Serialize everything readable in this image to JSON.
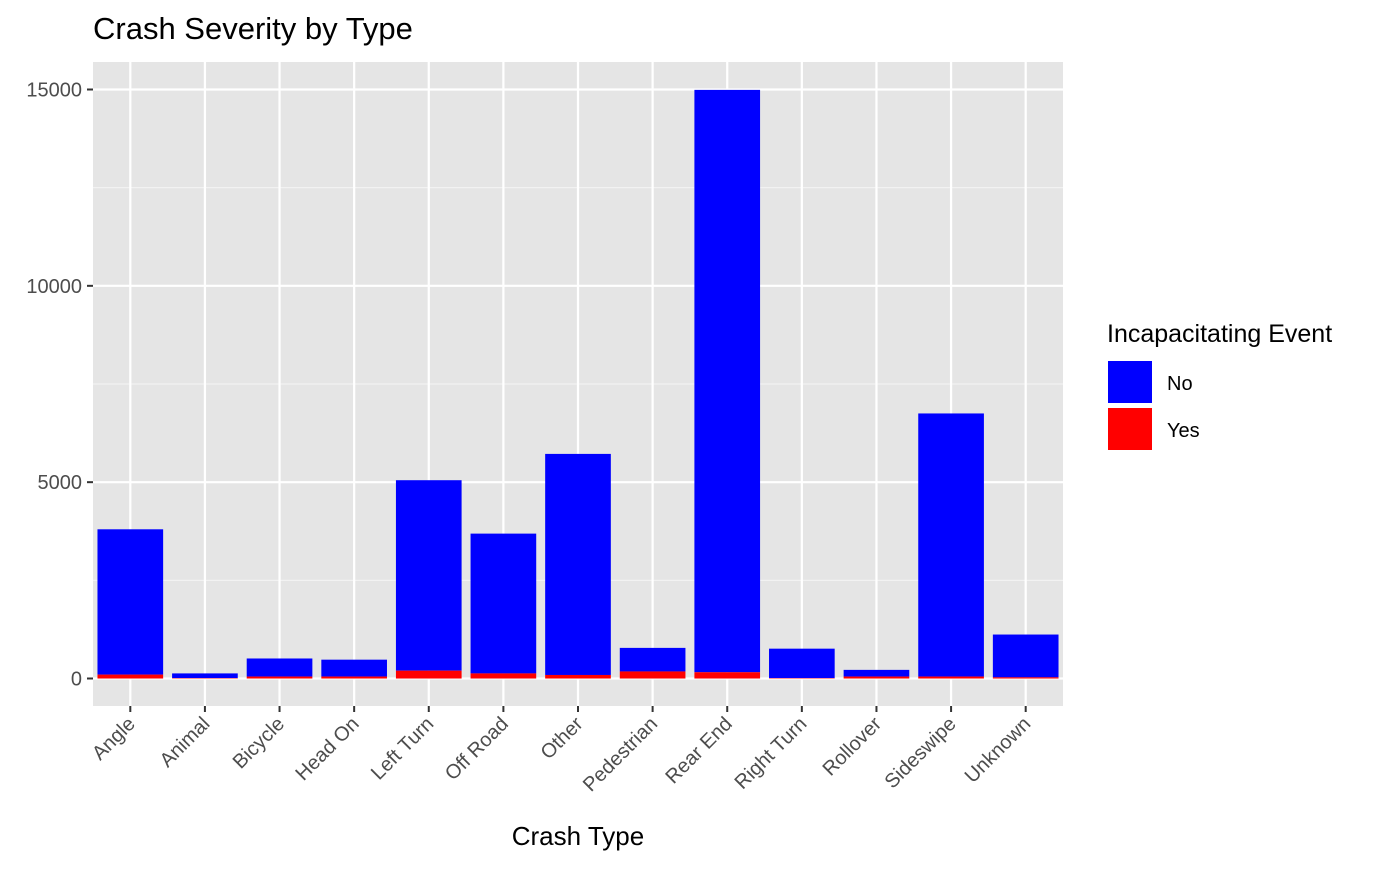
{
  "chart_data": {
    "type": "bar",
    "stacked": true,
    "title": "Crash Severity by Type",
    "xlabel": "Crash Type",
    "ylabel": "",
    "ylim": [
      -700,
      15700
    ],
    "yticks": [
      0,
      5000,
      10000,
      15000
    ],
    "categories": [
      "Angle",
      "Animal",
      "Bicycle",
      "Head On",
      "Left Turn",
      "Off Road",
      "Other",
      "Pedestrian",
      "Rear End",
      "Right Turn",
      "Rollover",
      "Sideswipe",
      "Unknown"
    ],
    "series": [
      {
        "name": "No",
        "values": [
          3700,
          120,
          460,
          430,
          4850,
          3560,
          5630,
          600,
          14830,
          750,
          170,
          6700,
          1090
        ]
      },
      {
        "name": "Yes",
        "values": [
          100,
          10,
          50,
          50,
          200,
          130,
          90,
          180,
          160,
          10,
          50,
          50,
          30
        ]
      }
    ],
    "legend": {
      "title": "Incapacitating Event",
      "position": "right"
    },
    "grid": true,
    "colors": {
      "No": "#0000ff",
      "Yes": "#ff0000",
      "panel_background": "#e5e5e5",
      "grid_major": "#ffffff",
      "grid_minor": "#f2f2f2",
      "text": "#000000",
      "tick_text": "#4d4d4d"
    }
  }
}
